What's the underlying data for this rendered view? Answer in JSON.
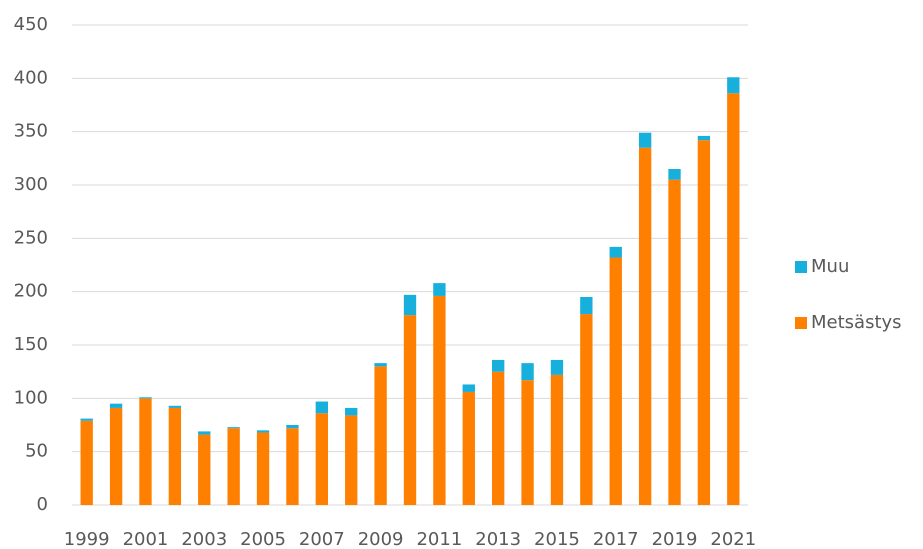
{
  "chart_data": {
    "type": "stacked-bar",
    "categories": [
      "1999",
      null,
      "2001",
      null,
      "2003",
      null,
      "2005",
      null,
      "2007",
      null,
      "2009",
      null,
      "2011",
      null,
      "2013",
      null,
      "2015",
      null,
      "2017",
      null,
      "2019",
      null,
      "2021"
    ],
    "series": [
      {
        "name": "Metsästys",
        "color": "#ff8000",
        "values": [
          79,
          91,
          100,
          91,
          66,
          72,
          68,
          72,
          86,
          84,
          130,
          178,
          196,
          106,
          125,
          117,
          122,
          179,
          232,
          335,
          305,
          342,
          386
        ]
      },
      {
        "name": "Muu",
        "color": "#17b0dc",
        "values": [
          2,
          4,
          1,
          2,
          3,
          1,
          2,
          3,
          11,
          7,
          3,
          19,
          12,
          7,
          11,
          16,
          14,
          16,
          10,
          14,
          10,
          4,
          15
        ]
      }
    ],
    "ylim": [
      0,
      450
    ],
    "yticks": [
      0,
      50,
      100,
      150,
      200,
      250,
      300,
      350,
      400,
      450
    ],
    "grid": true,
    "legend": "right"
  }
}
